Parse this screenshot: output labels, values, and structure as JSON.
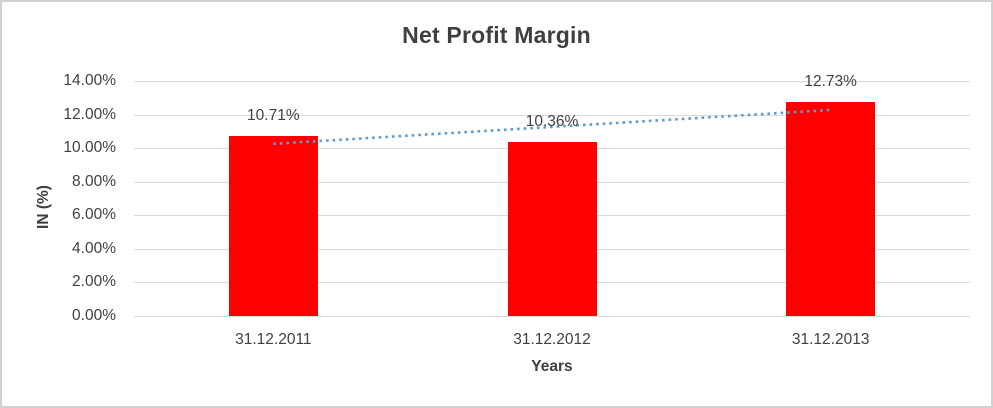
{
  "chart_data": {
    "type": "bar",
    "title": "Net Profit Margin",
    "xlabel": "Years",
    "ylabel": "IN (%)",
    "categories": [
      "31.12.2011",
      "31.12.2012",
      "31.12.2013"
    ],
    "values": [
      10.71,
      10.36,
      12.73
    ],
    "data_labels": [
      "10.71%",
      "10.36%",
      "12.73%"
    ],
    "ylim": [
      0,
      14
    ],
    "ytick_step": 2,
    "ytick_labels": [
      "0.00%",
      "2.00%",
      "4.00%",
      "6.00%",
      "8.00%",
      "10.00%",
      "12.00%",
      "14.00%"
    ],
    "grid": true,
    "legend": false,
    "trendline": {
      "type": "linear",
      "style": "dotted",
      "color": "#5b9bd5"
    },
    "colors": {
      "bar": "#ff0000",
      "gridline": "#d9d9d9",
      "text": "#404040",
      "title": "#3f3f3f",
      "background": "#ffffff",
      "border": "#d2d0d0"
    }
  }
}
